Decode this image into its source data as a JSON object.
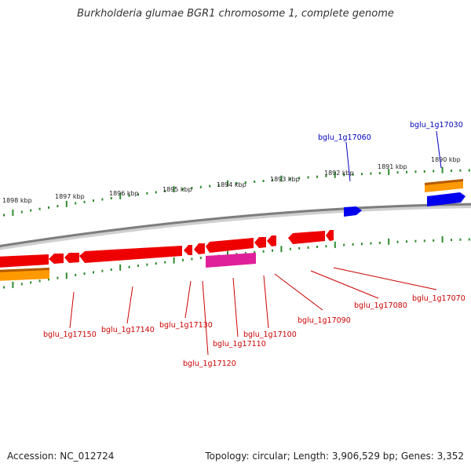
{
  "title": "Burkholderia glumae BGR1 chromosome 1, complete genome",
  "footer": {
    "accession": "Accession: NC_012724",
    "summary": "Topology: circular; Length: 3,906,529 bp; Genes: 3,352"
  },
  "colors": {
    "backbone": "#8a8a8a",
    "tick": "#2e8b2e",
    "gene_red": "#ee0000",
    "gene_blue": "#0000ee",
    "gene_magenta": "#e0209a",
    "gene_orange": "#ff9900",
    "label_red": "#cc0000",
    "label_blue": "#0000bb"
  },
  "kbp_labels": [
    "1898 kbp",
    "1897 kbp",
    "1896 kbp",
    "1895 kbp",
    "1894 kbp",
    "1893 kbp",
    "1892 kbp",
    "1891 kbp",
    "1890 kbp"
  ],
  "gene_labels": {
    "top": [
      "bglu_1g17060",
      "bglu_1g17030"
    ],
    "bottom": [
      "bglu_1g17150",
      "bglu_1g17140",
      "bglu_1g17130",
      "bglu_1g17120",
      "bglu_1g17110",
      "bglu_1g17100",
      "bglu_1g17090",
      "bglu_1g17080",
      "bglu_1g17070"
    ]
  }
}
